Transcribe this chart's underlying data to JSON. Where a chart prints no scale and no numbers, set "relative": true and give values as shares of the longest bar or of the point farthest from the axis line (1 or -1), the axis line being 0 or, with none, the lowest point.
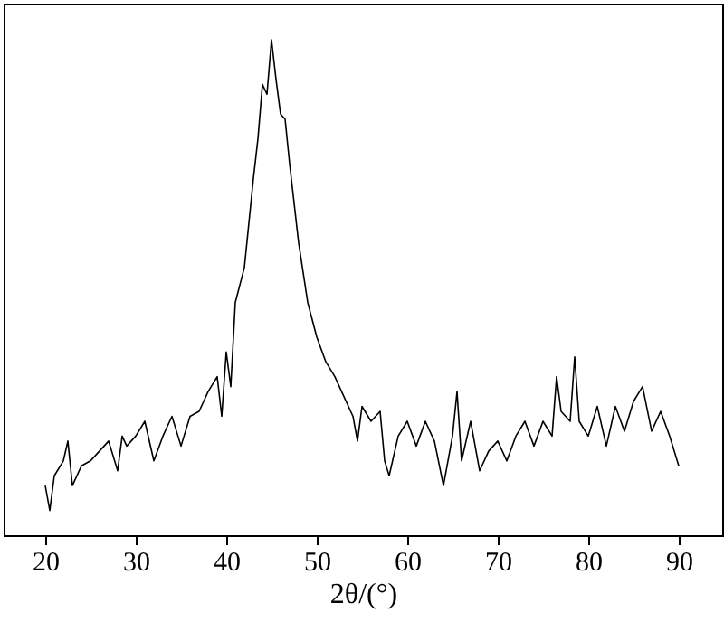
{
  "chart_data": {
    "type": "line",
    "relative": true,
    "xlabel": "2θ/(°)",
    "xlim": [
      15.4,
      94.8
    ],
    "xticks": [
      20,
      30,
      40,
      50,
      60,
      70,
      80,
      90
    ],
    "grid": false,
    "marker": "none",
    "line_style": "solid",
    "x": [
      20,
      20.5,
      21,
      22,
      22.5,
      23,
      24,
      25,
      26,
      27,
      28,
      28.5,
      29,
      30,
      31,
      32,
      33,
      34,
      35,
      36,
      37,
      38,
      39,
      39.5,
      40,
      40.5,
      41,
      42,
      43,
      43.5,
      44,
      44.5,
      45,
      45.5,
      46,
      46.5,
      47,
      47.5,
      48,
      48.5,
      49,
      50,
      51,
      52,
      53,
      54,
      54.5,
      55,
      56,
      57,
      57.5,
      58,
      59,
      60,
      61,
      62,
      63,
      64,
      65,
      65.5,
      66,
      67,
      68,
      69,
      70,
      71,
      72,
      73,
      74,
      75,
      76,
      76.5,
      77,
      78,
      78.5,
      79,
      80,
      81,
      82,
      83,
      84,
      85,
      86,
      87,
      88,
      89,
      90
    ],
    "series": [
      {
        "color": "#000000",
        "values": [
          0.1,
          0.05,
          0.12,
          0.15,
          0.19,
          0.1,
          0.14,
          0.15,
          0.17,
          0.19,
          0.13,
          0.2,
          0.18,
          0.2,
          0.23,
          0.15,
          0.2,
          0.24,
          0.18,
          0.24,
          0.25,
          0.29,
          0.32,
          0.24,
          0.37,
          0.3,
          0.47,
          0.54,
          0.72,
          0.8,
          0.91,
          0.89,
          1.0,
          0.92,
          0.85,
          0.84,
          0.75,
          0.67,
          0.59,
          0.53,
          0.47,
          0.4,
          0.35,
          0.32,
          0.28,
          0.24,
          0.19,
          0.26,
          0.23,
          0.25,
          0.15,
          0.12,
          0.2,
          0.23,
          0.18,
          0.23,
          0.19,
          0.1,
          0.2,
          0.29,
          0.15,
          0.23,
          0.13,
          0.17,
          0.19,
          0.15,
          0.2,
          0.23,
          0.18,
          0.23,
          0.2,
          0.32,
          0.25,
          0.23,
          0.36,
          0.23,
          0.2,
          0.26,
          0.18,
          0.26,
          0.21,
          0.27,
          0.3,
          0.21,
          0.25,
          0.2,
          0.14
        ]
      }
    ]
  }
}
